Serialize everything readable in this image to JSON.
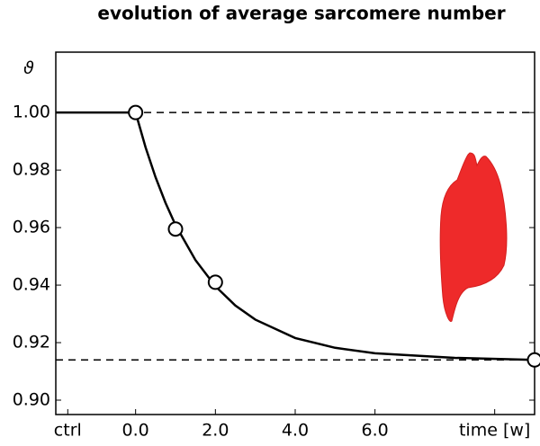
{
  "chart_data": {
    "type": "line",
    "title": "evolution of average sarcomere number",
    "ylabel": "ϑ",
    "xlim": [
      -2,
      10
    ],
    "ylim": [
      0.895,
      1.021
    ],
    "xticks": [
      {
        "value": -1.7,
        "label": "ctrl"
      },
      {
        "value": 0,
        "label": "0.0"
      },
      {
        "value": 2,
        "label": "2.0"
      },
      {
        "value": 4,
        "label": "4.0"
      },
      {
        "value": 6,
        "label": "6.0"
      },
      {
        "value": 9,
        "label": "time [w]"
      }
    ],
    "yticks": [
      {
        "value": 0.9,
        "label": "0.90"
      },
      {
        "value": 0.92,
        "label": "0.92"
      },
      {
        "value": 0.94,
        "label": "0.94"
      },
      {
        "value": 0.96,
        "label": "0.96"
      },
      {
        "value": 0.98,
        "label": "0.98"
      },
      {
        "value": 1.0,
        "label": "1.00"
      }
    ],
    "hlines": [
      1.0,
      0.914
    ],
    "series": [
      {
        "kind": "curve",
        "color": "#000000",
        "x": [
          -2,
          0,
          0.25,
          0.5,
          0.75,
          1,
          1.5,
          2,
          2.5,
          3,
          4,
          5,
          6,
          8,
          10
        ],
        "values": [
          1.0,
          1.0,
          0.9879,
          0.9775,
          0.9686,
          0.9609,
          0.9487,
          0.9396,
          0.9329,
          0.928,
          0.9216,
          0.9182,
          0.9163,
          0.9147,
          0.914
        ]
      },
      {
        "kind": "points",
        "color": "#000000",
        "x": [
          0,
          1,
          2,
          10
        ],
        "values": [
          1.0,
          0.9595,
          0.941,
          0.914
        ]
      }
    ],
    "grid": false
  }
}
